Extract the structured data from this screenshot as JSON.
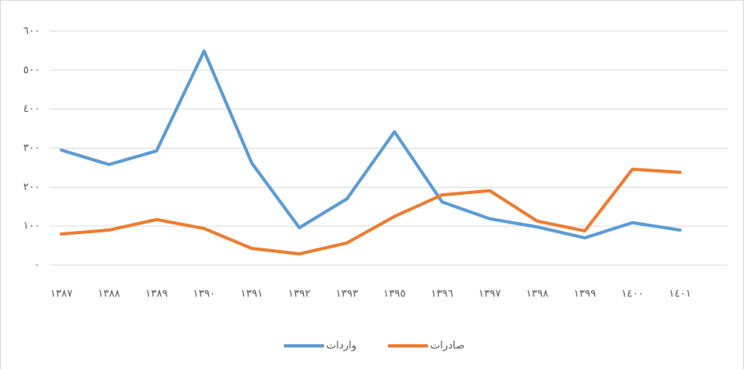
{
  "chart_data": {
    "type": "line",
    "categories": [
      "١٣٨٧",
      "١٣٨٨",
      "١٣٨٩",
      "١٣٩٠",
      "١٣٩١",
      "١٣٩٢",
      "١٣٩٣",
      "١٣٩٥",
      "١٣٩٦",
      "١٣٩٧",
      "١٣٩٨",
      "١٣٩٩",
      "١٤٠٠",
      "١٤٠١"
    ],
    "series": [
      {
        "name": "واردات",
        "color": "#5b9bd5",
        "values": [
          295,
          258,
          293,
          549,
          262,
          96,
          170,
          342,
          162,
          119,
          98,
          70,
          109,
          90
        ]
      },
      {
        "name": "صادرات",
        "color": "#ed7d31",
        "values": [
          80,
          90,
          117,
          94,
          43,
          29,
          57,
          125,
          180,
          191,
          113,
          88,
          246,
          238
        ]
      }
    ],
    "ylim": [
      0,
      600
    ],
    "yticks": [
      {
        "value": 0,
        "label": "٠"
      },
      {
        "value": 100,
        "label": "١٠٠"
      },
      {
        "value": 200,
        "label": "٢٠٠"
      },
      {
        "value": 300,
        "label": "٣٠٠"
      },
      {
        "value": 400,
        "label": "٤٠٠"
      },
      {
        "value": 500,
        "label": "٥٠٠"
      },
      {
        "value": 600,
        "label": "٦٠٠"
      }
    ],
    "grid": true
  }
}
